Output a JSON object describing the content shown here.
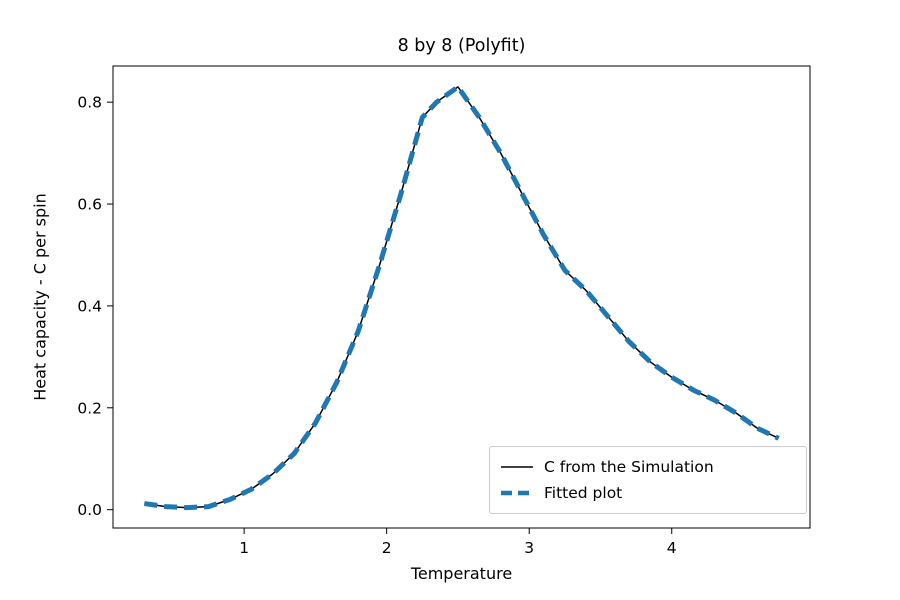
{
  "chart_data": {
    "type": "line",
    "title": "8 by 8 (Polyfit)",
    "xlabel": "Temperature",
    "ylabel": "Heat capacity - C per spin",
    "xlim": [
      0.08,
      4.97
    ],
    "ylim": [
      -0.036,
      0.871
    ],
    "xticks": [
      "1",
      "2",
      "3",
      "4"
    ],
    "yticks": [
      "0.0",
      "0.2",
      "0.4",
      "0.6",
      "0.8"
    ],
    "grid": false,
    "legend": {
      "position": "lower right"
    },
    "x": [
      0.3,
      0.45,
      0.6,
      0.75,
      0.9,
      1.05,
      1.2,
      1.35,
      1.5,
      1.65,
      1.8,
      1.95,
      2.1,
      2.25,
      2.35,
      2.5,
      2.65,
      2.8,
      2.95,
      3.1,
      3.25,
      3.4,
      3.55,
      3.7,
      3.85,
      4.0,
      4.15,
      4.3,
      4.45,
      4.6,
      4.75
    ],
    "series": [
      {
        "name": "C from the Simulation",
        "color": "#000000",
        "style": "solid",
        "width": 1.5,
        "values": [
          0.012,
          0.006,
          0.004,
          0.006,
          0.02,
          0.04,
          0.07,
          0.11,
          0.17,
          0.25,
          0.35,
          0.48,
          0.62,
          0.77,
          0.8,
          0.83,
          0.77,
          0.7,
          0.62,
          0.54,
          0.47,
          0.43,
          0.38,
          0.33,
          0.29,
          0.26,
          0.235,
          0.215,
          0.19,
          0.16,
          0.14
        ]
      },
      {
        "name": "Fitted plot",
        "color": "#1f77b4",
        "style": "dashed",
        "width": 5,
        "values": [
          0.012,
          0.006,
          0.004,
          0.006,
          0.02,
          0.04,
          0.07,
          0.11,
          0.17,
          0.25,
          0.35,
          0.48,
          0.62,
          0.77,
          0.8,
          0.83,
          0.77,
          0.7,
          0.62,
          0.54,
          0.47,
          0.43,
          0.38,
          0.33,
          0.29,
          0.26,
          0.235,
          0.215,
          0.19,
          0.16,
          0.14
        ]
      }
    ]
  }
}
